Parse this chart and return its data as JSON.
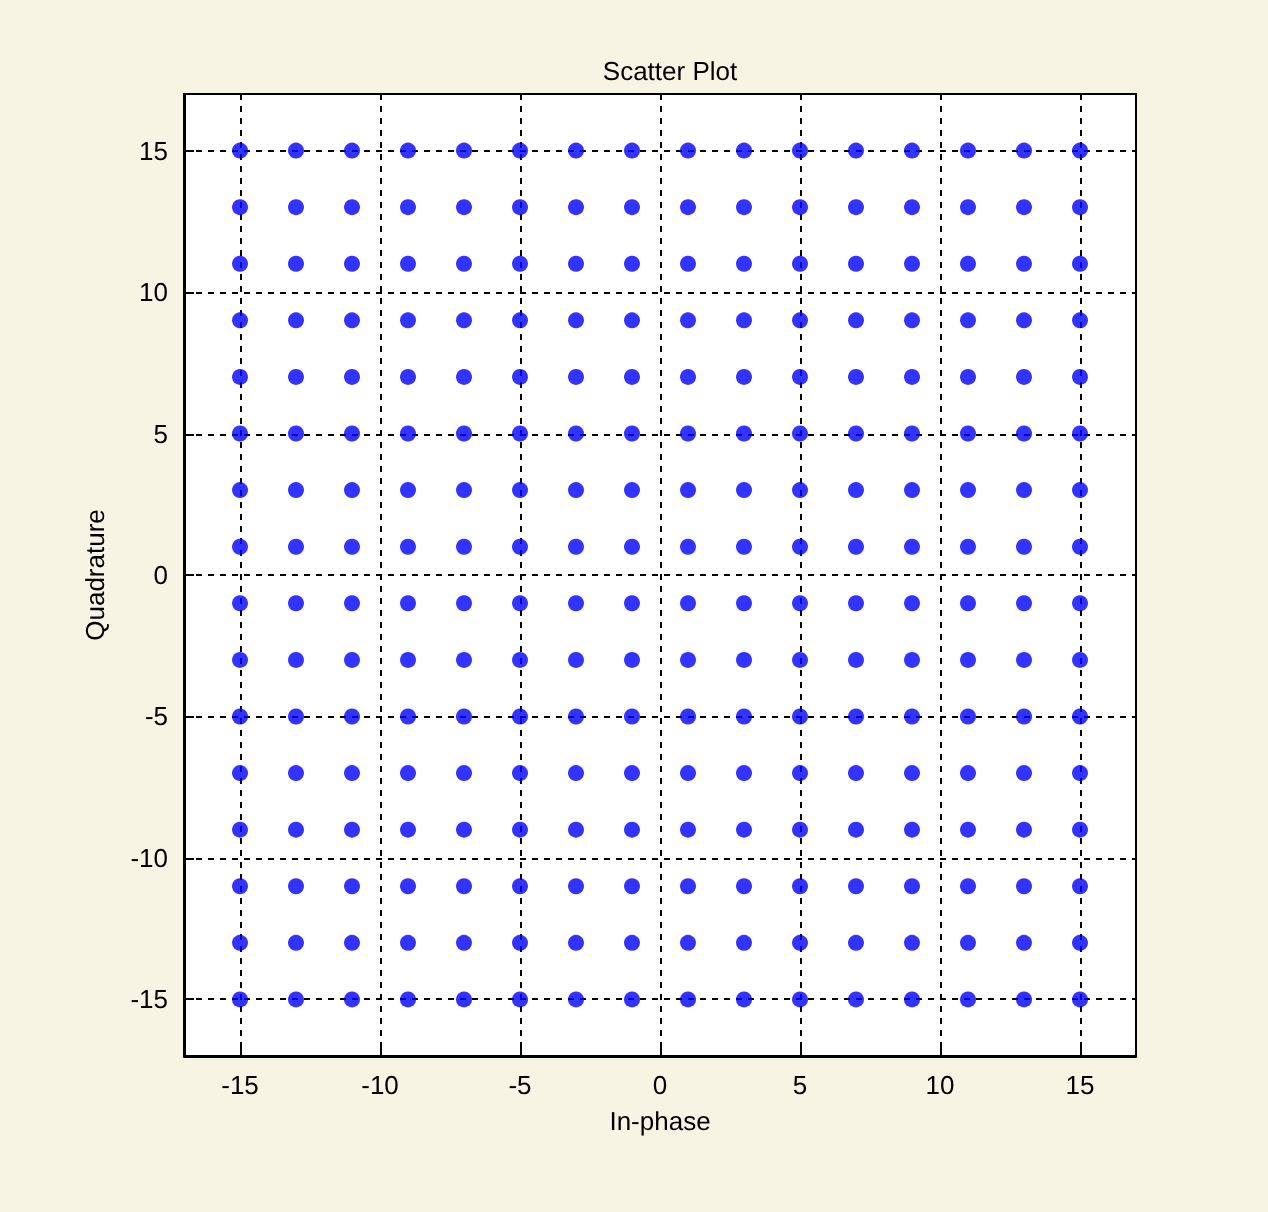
{
  "chart_data": {
    "type": "scatter",
    "title": "Scatter Plot",
    "xlabel": "In-phase",
    "ylabel": "Quadrature",
    "x": [
      -15,
      -15,
      -15,
      -15,
      -15,
      -15,
      -15,
      -15,
      -15,
      -15,
      -15,
      -15,
      -15,
      -15,
      -15,
      -15,
      -13,
      -13,
      -13,
      -13,
      -13,
      -13,
      -13,
      -13,
      -13,
      -13,
      -13,
      -13,
      -13,
      -13,
      -13,
      -13,
      -11,
      -11,
      -11,
      -11,
      -11,
      -11,
      -11,
      -11,
      -11,
      -11,
      -11,
      -11,
      -11,
      -11,
      -11,
      -11,
      -9,
      -9,
      -9,
      -9,
      -9,
      -9,
      -9,
      -9,
      -9,
      -9,
      -9,
      -9,
      -9,
      -9,
      -9,
      -9,
      -7,
      -7,
      -7,
      -7,
      -7,
      -7,
      -7,
      -7,
      -7,
      -7,
      -7,
      -7,
      -7,
      -7,
      -7,
      -7,
      -5,
      -5,
      -5,
      -5,
      -5,
      -5,
      -5,
      -5,
      -5,
      -5,
      -5,
      -5,
      -5,
      -5,
      -5,
      -5,
      -3,
      -3,
      -3,
      -3,
      -3,
      -3,
      -3,
      -3,
      -3,
      -3,
      -3,
      -3,
      -3,
      -3,
      -3,
      -3,
      -1,
      -1,
      -1,
      -1,
      -1,
      -1,
      -1,
      -1,
      -1,
      -1,
      -1,
      -1,
      -1,
      -1,
      -1,
      -1,
      1,
      1,
      1,
      1,
      1,
      1,
      1,
      1,
      1,
      1,
      1,
      1,
      1,
      1,
      1,
      1,
      3,
      3,
      3,
      3,
      3,
      3,
      3,
      3,
      3,
      3,
      3,
      3,
      3,
      3,
      3,
      3,
      5,
      5,
      5,
      5,
      5,
      5,
      5,
      5,
      5,
      5,
      5,
      5,
      5,
      5,
      5,
      5,
      7,
      7,
      7,
      7,
      7,
      7,
      7,
      7,
      7,
      7,
      7,
      7,
      7,
      7,
      7,
      7,
      9,
      9,
      9,
      9,
      9,
      9,
      9,
      9,
      9,
      9,
      9,
      9,
      9,
      9,
      9,
      9,
      11,
      11,
      11,
      11,
      11,
      11,
      11,
      11,
      11,
      11,
      11,
      11,
      11,
      11,
      11,
      11,
      13,
      13,
      13,
      13,
      13,
      13,
      13,
      13,
      13,
      13,
      13,
      13,
      13,
      13,
      13,
      13,
      15,
      15,
      15,
      15,
      15,
      15,
      15,
      15,
      15,
      15,
      15,
      15,
      15,
      15,
      15,
      15
    ],
    "values": [
      -15,
      -13,
      -11,
      -9,
      -7,
      -5,
      -3,
      -1,
      1,
      3,
      5,
      7,
      9,
      11,
      13,
      15,
      -15,
      -13,
      -11,
      -9,
      -7,
      -5,
      -3,
      -1,
      1,
      3,
      5,
      7,
      9,
      11,
      13,
      15,
      -15,
      -13,
      -11,
      -9,
      -7,
      -5,
      -3,
      -1,
      1,
      3,
      5,
      7,
      9,
      11,
      13,
      15,
      -15,
      -13,
      -11,
      -9,
      -7,
      -5,
      -3,
      -1,
      1,
      3,
      5,
      7,
      9,
      11,
      13,
      15,
      -15,
      -13,
      -11,
      -9,
      -7,
      -5,
      -3,
      -1,
      1,
      3,
      5,
      7,
      9,
      11,
      13,
      15,
      -15,
      -13,
      -11,
      -9,
      -7,
      -5,
      -3,
      -1,
      1,
      3,
      5,
      7,
      9,
      11,
      13,
      15,
      -15,
      -13,
      -11,
      -9,
      -7,
      -5,
      -3,
      -1,
      1,
      3,
      5,
      7,
      9,
      11,
      13,
      15,
      -15,
      -13,
      -11,
      -9,
      -7,
      -5,
      -3,
      -1,
      1,
      3,
      5,
      7,
      9,
      11,
      13,
      15,
      -15,
      -13,
      -11,
      -9,
      -7,
      -5,
      -3,
      -1,
      1,
      3,
      5,
      7,
      9,
      11,
      13,
      15,
      -15,
      -13,
      -11,
      -9,
      -7,
      -5,
      -3,
      -1,
      1,
      3,
      5,
      7,
      9,
      11,
      13,
      15,
      -15,
      -13,
      -11,
      -9,
      -7,
      -5,
      -3,
      -1,
      1,
      3,
      5,
      7,
      9,
      11,
      13,
      15,
      -15,
      -13,
      -11,
      -9,
      -7,
      -5,
      -3,
      -1,
      1,
      3,
      5,
      7,
      9,
      11,
      13,
      15,
      -15,
      -13,
      -11,
      -9,
      -7,
      -5,
      -3,
      -1,
      1,
      3,
      5,
      7,
      9,
      11,
      13,
      15,
      -15,
      -13,
      -11,
      -9,
      -7,
      -5,
      -3,
      -1,
      1,
      3,
      5,
      7,
      9,
      11,
      13,
      15,
      -15,
      -13,
      -11,
      -9,
      -7,
      -5,
      -3,
      -1,
      1,
      3,
      5,
      7,
      9,
      11,
      13,
      15,
      -15,
      -13,
      -11,
      -9,
      -7,
      -5,
      -3,
      -1,
      1,
      3,
      5,
      7,
      9,
      11,
      13,
      15
    ],
    "color": "#0000ff",
    "marker": "circle",
    "xlim": [
      -17,
      17
    ],
    "ylim": [
      -17,
      17
    ],
    "xticks": [
      -15,
      -10,
      -5,
      0,
      5,
      10,
      15
    ],
    "yticks": [
      -15,
      -10,
      -5,
      0,
      5,
      10,
      15
    ],
    "grid": true
  }
}
